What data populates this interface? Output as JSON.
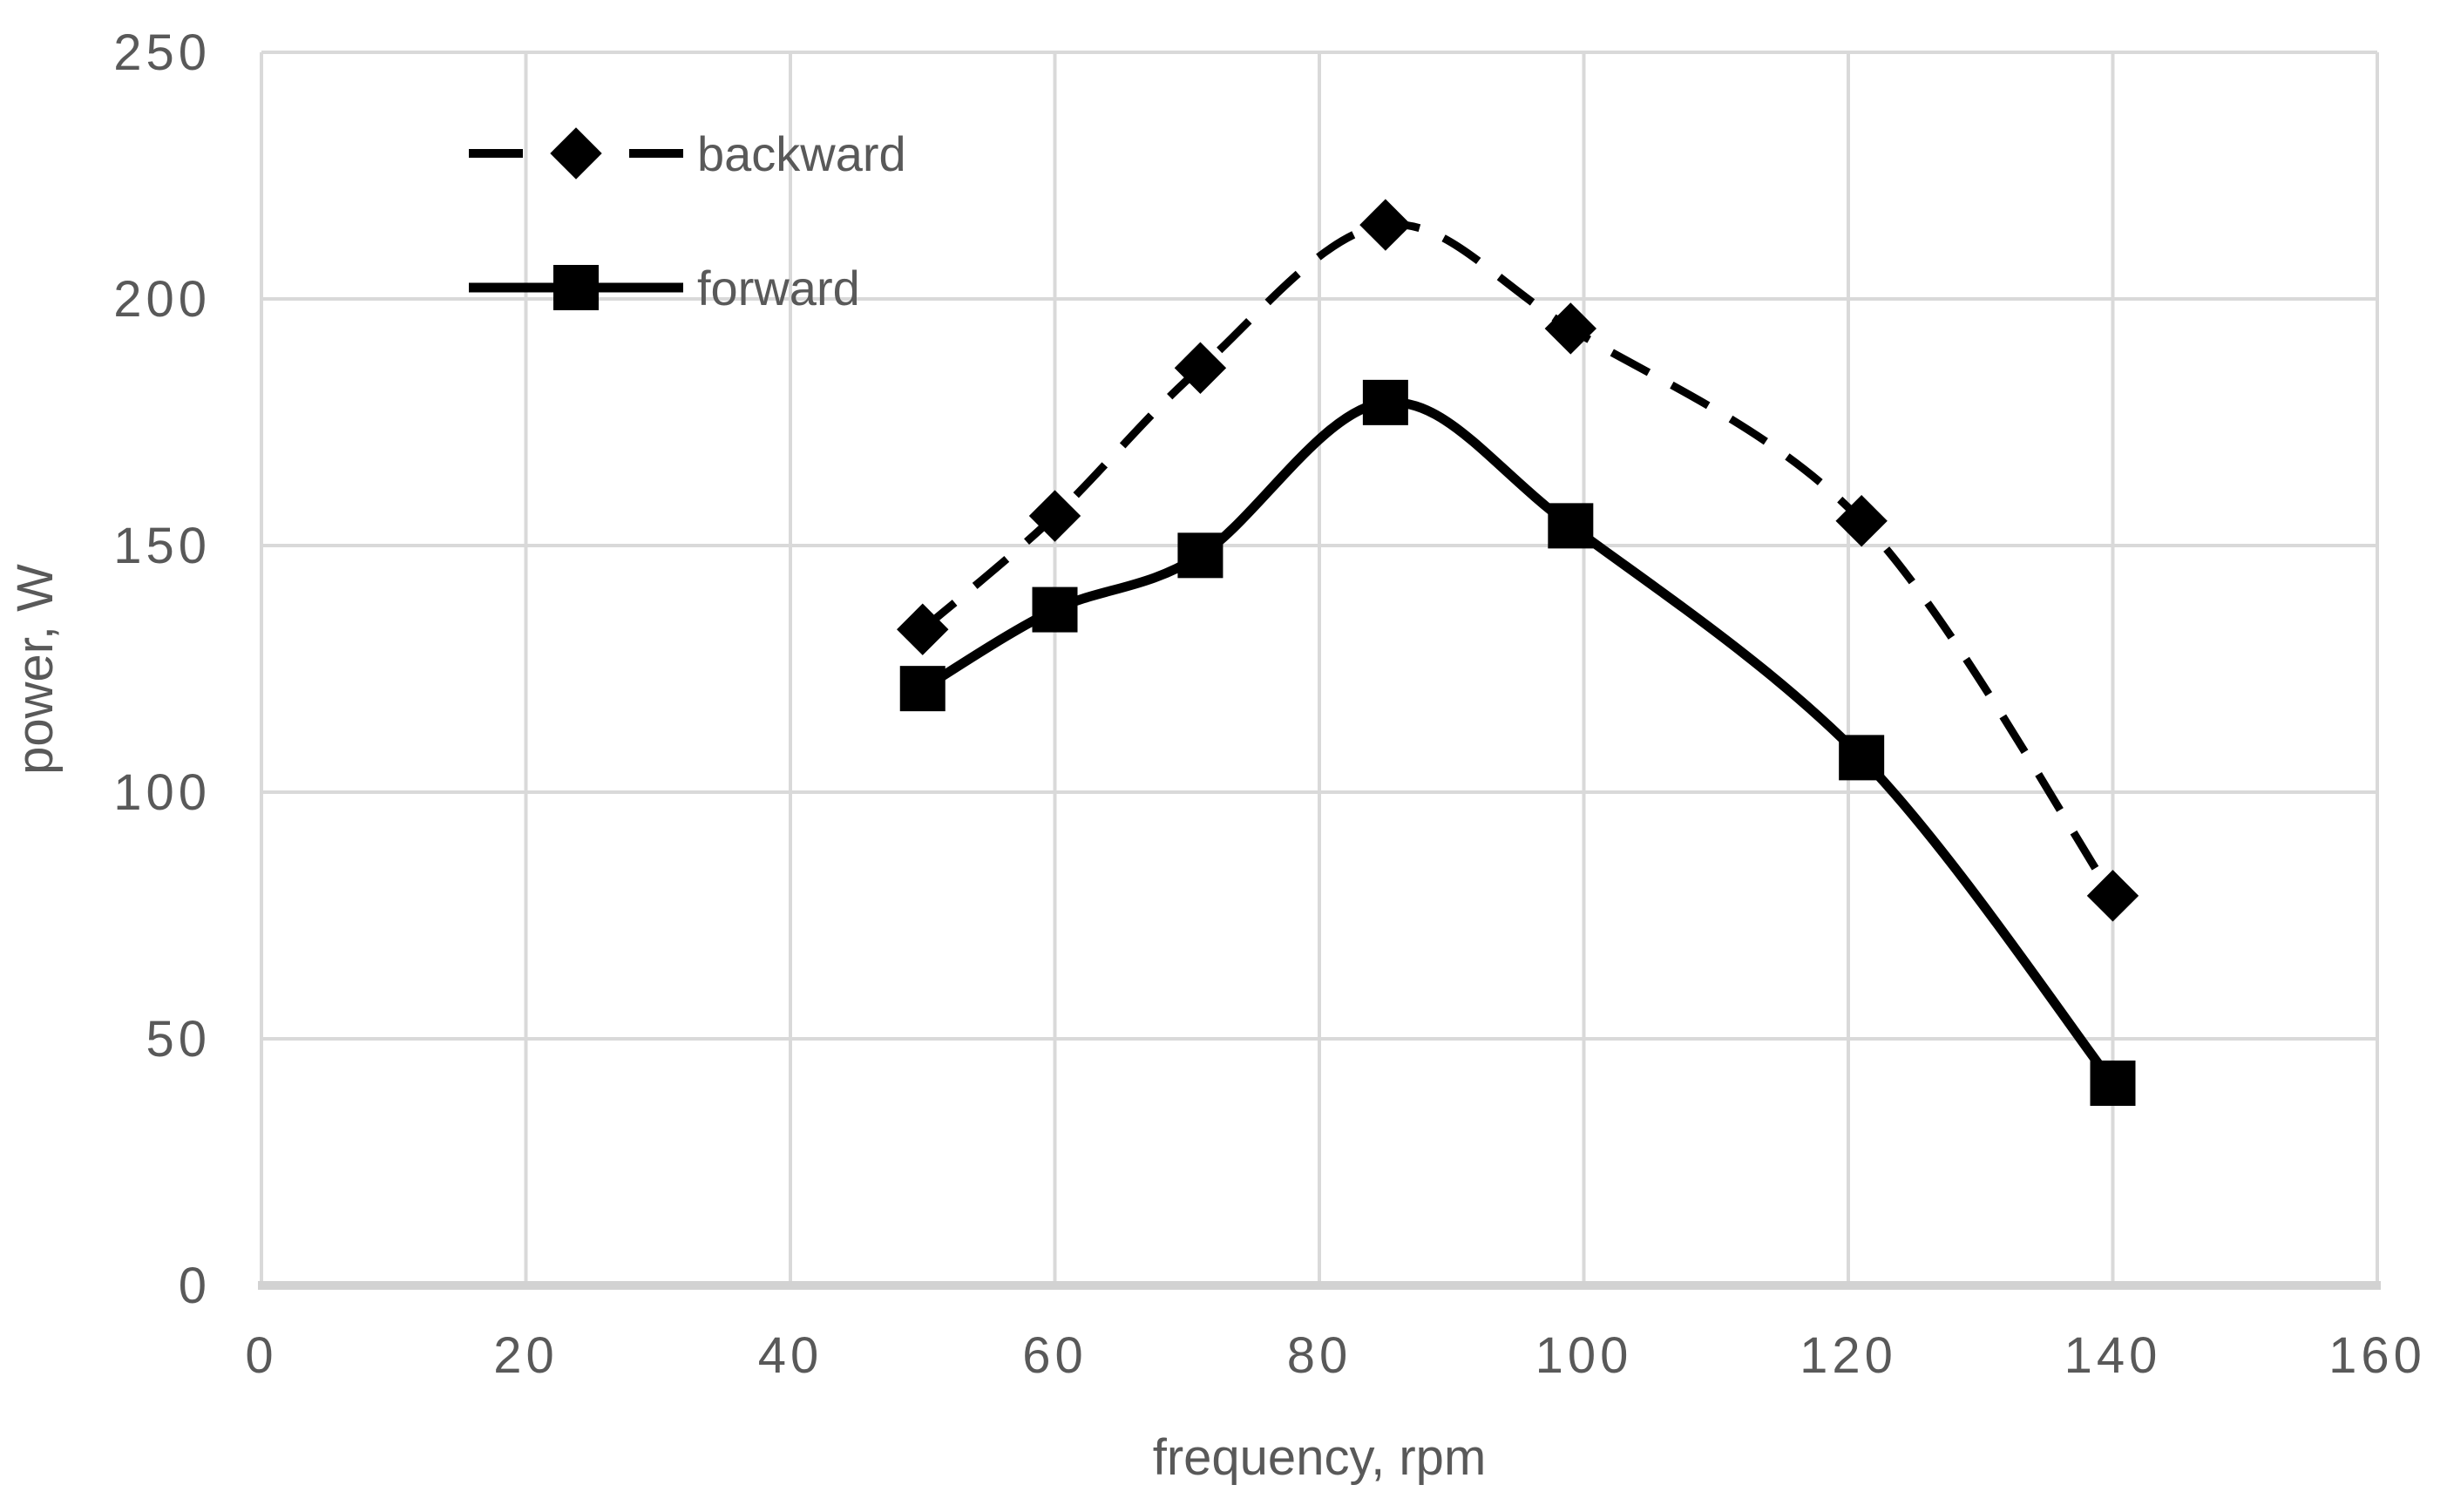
{
  "chart_data": {
    "type": "line",
    "title": "",
    "xlabel": "frequency, rpm",
    "ylabel": "power, W",
    "x": [
      50,
      60,
      71,
      85,
      99,
      121,
      140
    ],
    "series": [
      {
        "name": "backward",
        "values": [
          133,
          156,
          186,
          215,
          194,
          155,
          79
        ],
        "line_style": "dashed",
        "marker": "diamond"
      },
      {
        "name": "forward",
        "values": [
          121,
          137,
          148,
          179,
          154,
          107,
          41
        ],
        "line_style": "solid",
        "marker": "square"
      }
    ],
    "xlim": [
      0,
      160
    ],
    "ylim": [
      0,
      250
    ],
    "x_ticks": [
      0,
      20,
      40,
      60,
      80,
      100,
      120,
      140,
      160
    ],
    "y_ticks": [
      0,
      50,
      100,
      150,
      200,
      250
    ],
    "grid": true,
    "legend_position": "top-left-inside",
    "colors": {
      "series": "#000000",
      "gridline": "#d9d9d9",
      "axis_line": "#d2d2d2",
      "tick_label": "#595959",
      "axis_title": "#595959",
      "background": "#ffffff"
    }
  }
}
